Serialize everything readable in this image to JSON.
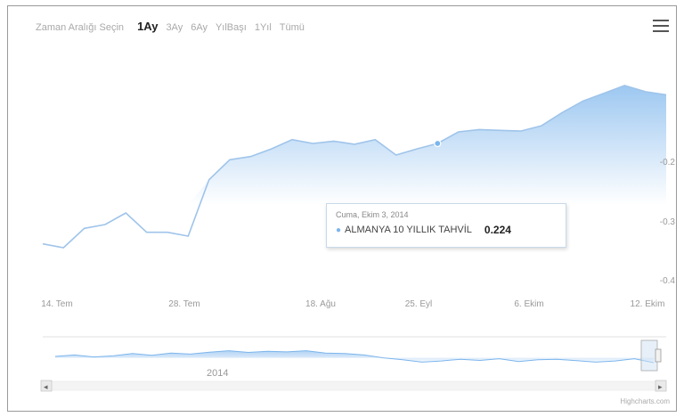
{
  "toolbar": {
    "zoom_label": "Zaman Aralığı Seçin",
    "ranges": [
      "1Ay",
      "3Ay",
      "6Ay",
      "YılBaşı",
      "1Yıl",
      "Tümü"
    ],
    "active_range": "1Ay"
  },
  "tooltip": {
    "date": "Cuma, Ekim 3, 2014",
    "series_name": "ALMANYA 10 YILLIK TAHVİL",
    "value": "0.224"
  },
  "credit": "Highcharts.com",
  "chart_data": {
    "type": "area",
    "x_ticks": [
      "14. Tem",
      "28. Tem",
      "18. Ağu",
      "25. Eyl",
      "6. Ekim",
      "12. Ekim"
    ],
    "y_ticks": [
      "0.2",
      "0.3",
      "0.4"
    ],
    "y_axis_reversed": true,
    "ylim": [
      0.14,
      0.41
    ],
    "series": [
      {
        "x": [
          0,
          1,
          2,
          3,
          4,
          5,
          6,
          7,
          8,
          9,
          10,
          11,
          12,
          13,
          14,
          15,
          16,
          17,
          18,
          19,
          20,
          21,
          22,
          23,
          24,
          25,
          26,
          27,
          28,
          29,
          30
        ],
        "values": [
          0.345,
          0.35,
          0.325,
          0.32,
          0.305,
          0.33,
          0.33,
          0.335,
          0.262,
          0.236,
          0.232,
          0.222,
          0.21,
          0.215,
          0.212,
          0.216,
          0.21,
          0.23,
          0.222,
          0.215,
          0.2,
          0.197,
          0.198,
          0.199,
          0.192,
          0.175,
          0.16,
          0.15,
          0.14,
          0.148,
          0.152
        ]
      }
    ],
    "navigator": {
      "label": "2014",
      "values": [
        0.5,
        0.45,
        0.52,
        0.48,
        0.4,
        0.46,
        0.38,
        0.42,
        0.35,
        0.3,
        0.36,
        0.32,
        0.34,
        0.3,
        0.38,
        0.4,
        0.45,
        0.55,
        0.62,
        0.7,
        0.66,
        0.6,
        0.64,
        0.58,
        0.68,
        0.62,
        0.6,
        0.65,
        0.7,
        0.66,
        0.58,
        0.72
      ]
    }
  }
}
